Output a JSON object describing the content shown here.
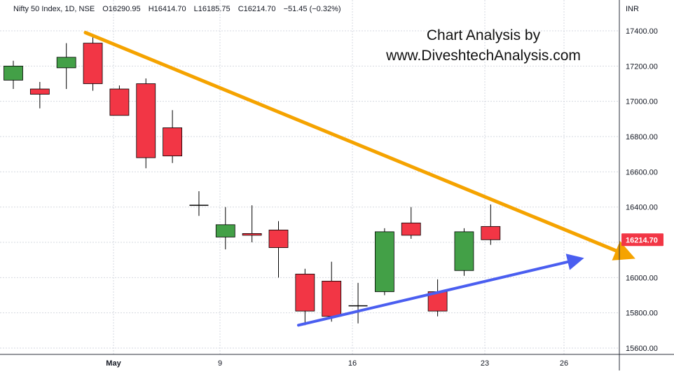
{
  "header": {
    "symbol": "Nifty 50 Index, 1D, NSE",
    "open": "O16290.95",
    "high": "H16414.70",
    "low": "L16185.75",
    "close": "C16214.70",
    "change": "−51.45 (−0.32%)"
  },
  "watermark": {
    "line1": "Chart Analysis by",
    "line2": "www.DiveshtechAnalysis.com"
  },
  "colors": {
    "up": "#43a047",
    "down": "#f23645",
    "neutral": "#000000",
    "resistance_trendline": "#f5a300",
    "support_trendline": "#4a5ef0",
    "price_tag": "#f23645",
    "grid": "#d6d9e0"
  },
  "chart_data": {
    "type": "candlestick",
    "currency_label": "INR",
    "ylim": [
      15550,
      17550
    ],
    "y_ticks": [
      "17400.00",
      "17200.00",
      "17000.00",
      "16800.00",
      "16600.00",
      "16400.00",
      "16000.00",
      "15800.00",
      "15600.00"
    ],
    "x_ticks": [
      "May",
      "9",
      "16",
      "23",
      "26"
    ],
    "last_price_label": "16214.70",
    "last_price": 16214.7,
    "candles": [
      {
        "open": 17120,
        "high": 17230,
        "low": 17070,
        "close": 17200
      },
      {
        "open": 17070,
        "high": 17110,
        "low": 16960,
        "close": 17040
      },
      {
        "open": 17190,
        "high": 17330,
        "low": 17070,
        "close": 17250
      },
      {
        "open": 17330,
        "high": 17380,
        "low": 17060,
        "close": 17100
      },
      {
        "open": 17070,
        "high": 17090,
        "low": 16920,
        "close": 16920
      },
      {
        "open": 17100,
        "high": 17130,
        "low": 16620,
        "close": 16680
      },
      {
        "open": 16850,
        "high": 16950,
        "low": 16650,
        "close": 16690
      },
      {
        "open": 16410,
        "high": 16490,
        "low": 16350,
        "close": 16410
      },
      {
        "open": 16230,
        "high": 16400,
        "low": 16160,
        "close": 16300
      },
      {
        "open": 16250,
        "high": 16410,
        "low": 16200,
        "close": 16240
      },
      {
        "open": 16270,
        "high": 16320,
        "low": 16000,
        "close": 16170
      },
      {
        "open": 16020,
        "high": 16050,
        "low": 15730,
        "close": 15810
      },
      {
        "open": 15980,
        "high": 16090,
        "low": 15750,
        "close": 15780
      },
      {
        "open": 15840,
        "high": 15970,
        "low": 15740,
        "close": 15840
      },
      {
        "open": 15920,
        "high": 16280,
        "low": 15900,
        "close": 16260
      },
      {
        "open": 16310,
        "high": 16400,
        "low": 16220,
        "close": 16240
      },
      {
        "open": 15920,
        "high": 15990,
        "low": 15780,
        "close": 15810
      },
      {
        "open": 16040,
        "high": 16280,
        "low": 16010,
        "close": 16260
      },
      {
        "open": 16290,
        "high": 16414.7,
        "low": 16185.75,
        "close": 16214.7
      }
    ],
    "trendlines": [
      {
        "name": "resistance",
        "start": 17390,
        "end": 16130
      },
      {
        "name": "support",
        "start": 15730,
        "end": 16100
      }
    ]
  }
}
